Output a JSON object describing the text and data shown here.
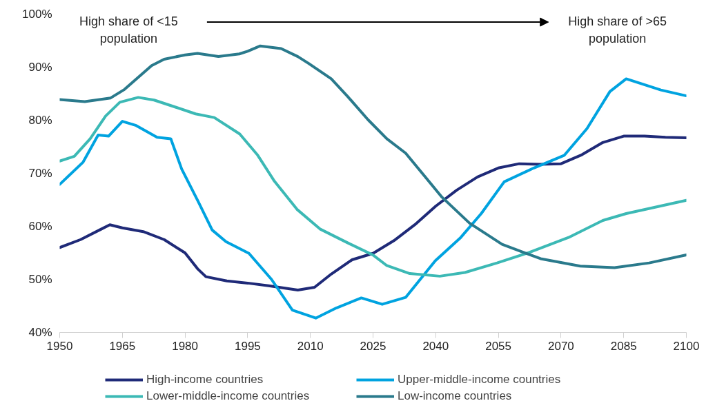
{
  "chart_data": {
    "type": "line",
    "annotations": [
      "High share of <15\npopulation",
      "High share of >65\npopulation"
    ],
    "xlim": [
      1950,
      2100
    ],
    "xticks": [
      1950,
      1965,
      1980,
      1995,
      2010,
      2025,
      2040,
      2055,
      2070,
      2085,
      2100
    ],
    "ylim": [
      40,
      100
    ],
    "yticks": [
      {
        "value": 40,
        "label": "40%"
      },
      {
        "value": 50,
        "label": "50%"
      },
      {
        "value": 60,
        "label": "60%"
      },
      {
        "value": 70,
        "label": "70%"
      },
      {
        "value": 80,
        "label": "80%"
      },
      {
        "value": 90,
        "label": "90%"
      },
      {
        "value": 100,
        "label": "100%"
      }
    ],
    "grid": false,
    "legend": "bottom",
    "line_style": "solid",
    "marker": "none",
    "series": [
      {
        "name": "High-income countries",
        "color": "#1f2a78",
        "x": [
          1950,
          1955,
          1960,
          1962,
          1965,
          1970,
          1975,
          1980,
          1983,
          1985,
          1990,
          1995,
          2000,
          2007,
          2011,
          2015,
          2020,
          2025,
          2030,
          2035,
          2040,
          2045,
          2050,
          2055,
          2060,
          2065,
          2070,
          2075,
          2080,
          2085,
          2090,
          2095,
          2100
        ],
        "values": [
          56,
          57.5,
          59.5,
          60.3,
          59.7,
          59,
          57.5,
          55,
          52,
          50.5,
          49.7,
          49.3,
          48.8,
          48,
          48.5,
          51,
          53.7,
          54.9,
          57.3,
          60.3,
          63.8,
          66.8,
          69.3,
          71,
          71.8,
          71.7,
          71.8,
          73.5,
          75.8,
          77,
          77,
          76.8,
          76.7
        ]
      },
      {
        "name": "Upper-middle-income countries",
        "color": "#00a3e0",
        "x": [
          1950,
          1955.6,
          1959.2,
          1961.7,
          1965,
          1968.3,
          1973.3,
          1976.6,
          1979.2,
          1983.2,
          1986.5,
          1989.8,
          1995.3,
          2000.7,
          2005.7,
          2011.3,
          2016.2,
          2022.2,
          2027.2,
          2032.8,
          2039.9,
          2046,
          2050.9,
          2056.4,
          2063.5,
          2070.8,
          2076.2,
          2081.7,
          2085.6,
          2093.9,
          2100
        ],
        "values": [
          67.9,
          72.1,
          77.2,
          77,
          79.8,
          79,
          76.8,
          76.5,
          70.8,
          64.6,
          59.3,
          57.1,
          54.9,
          50,
          44.2,
          42.7,
          44.6,
          46.5,
          45.3,
          46.6,
          53.5,
          57.9,
          62.4,
          68.4,
          71,
          73.4,
          78.4,
          85.4,
          87.8,
          85.7,
          84.6
        ]
      },
      {
        "name": "Lower-middle-income countries",
        "color": "#3cb9b5",
        "x": [
          1950,
          1953.5,
          1957.3,
          1961,
          1964.4,
          1968.8,
          1972.6,
          1977.6,
          1982.5,
          1987,
          1993.1,
          1997.4,
          2001.4,
          2006.8,
          2012.3,
          2018.9,
          2025,
          2028.3,
          2033.8,
          2041,
          2047,
          2054.7,
          2062.5,
          2071.8,
          2080,
          2085.6,
          2100
        ],
        "values": [
          72.3,
          73.2,
          76.5,
          80.8,
          83.4,
          84.3,
          83.8,
          82.5,
          81.2,
          80.5,
          77.4,
          73.4,
          68.5,
          63.2,
          59.5,
          56.9,
          54.6,
          52.6,
          51.1,
          50.6,
          51.3,
          53.1,
          55.1,
          57.9,
          61.1,
          62.4,
          64.9
        ]
      },
      {
        "name": "Low-income countries",
        "color": "#2a7a8c",
        "x": [
          1950,
          1956,
          1962.2,
          1965.5,
          1972,
          1975,
          1980,
          1983,
          1988,
          1993,
          1995,
          1998,
          2003,
          2007,
          2009.6,
          2015,
          2018.9,
          2023.8,
          2028.3,
          2032.8,
          2041.5,
          2048.1,
          2055.9,
          2065.1,
          2074.6,
          2082.8,
          2091.1,
          2100
        ],
        "values": [
          83.9,
          83.5,
          84.2,
          85.8,
          90.3,
          91.5,
          92.3,
          92.6,
          92,
          92.5,
          93,
          94,
          93.5,
          92,
          90.7,
          87.8,
          84.5,
          80.1,
          76.5,
          73.8,
          65.5,
          60.6,
          56.6,
          53.9,
          52.5,
          52.2,
          53.1,
          54.6
        ]
      }
    ]
  }
}
